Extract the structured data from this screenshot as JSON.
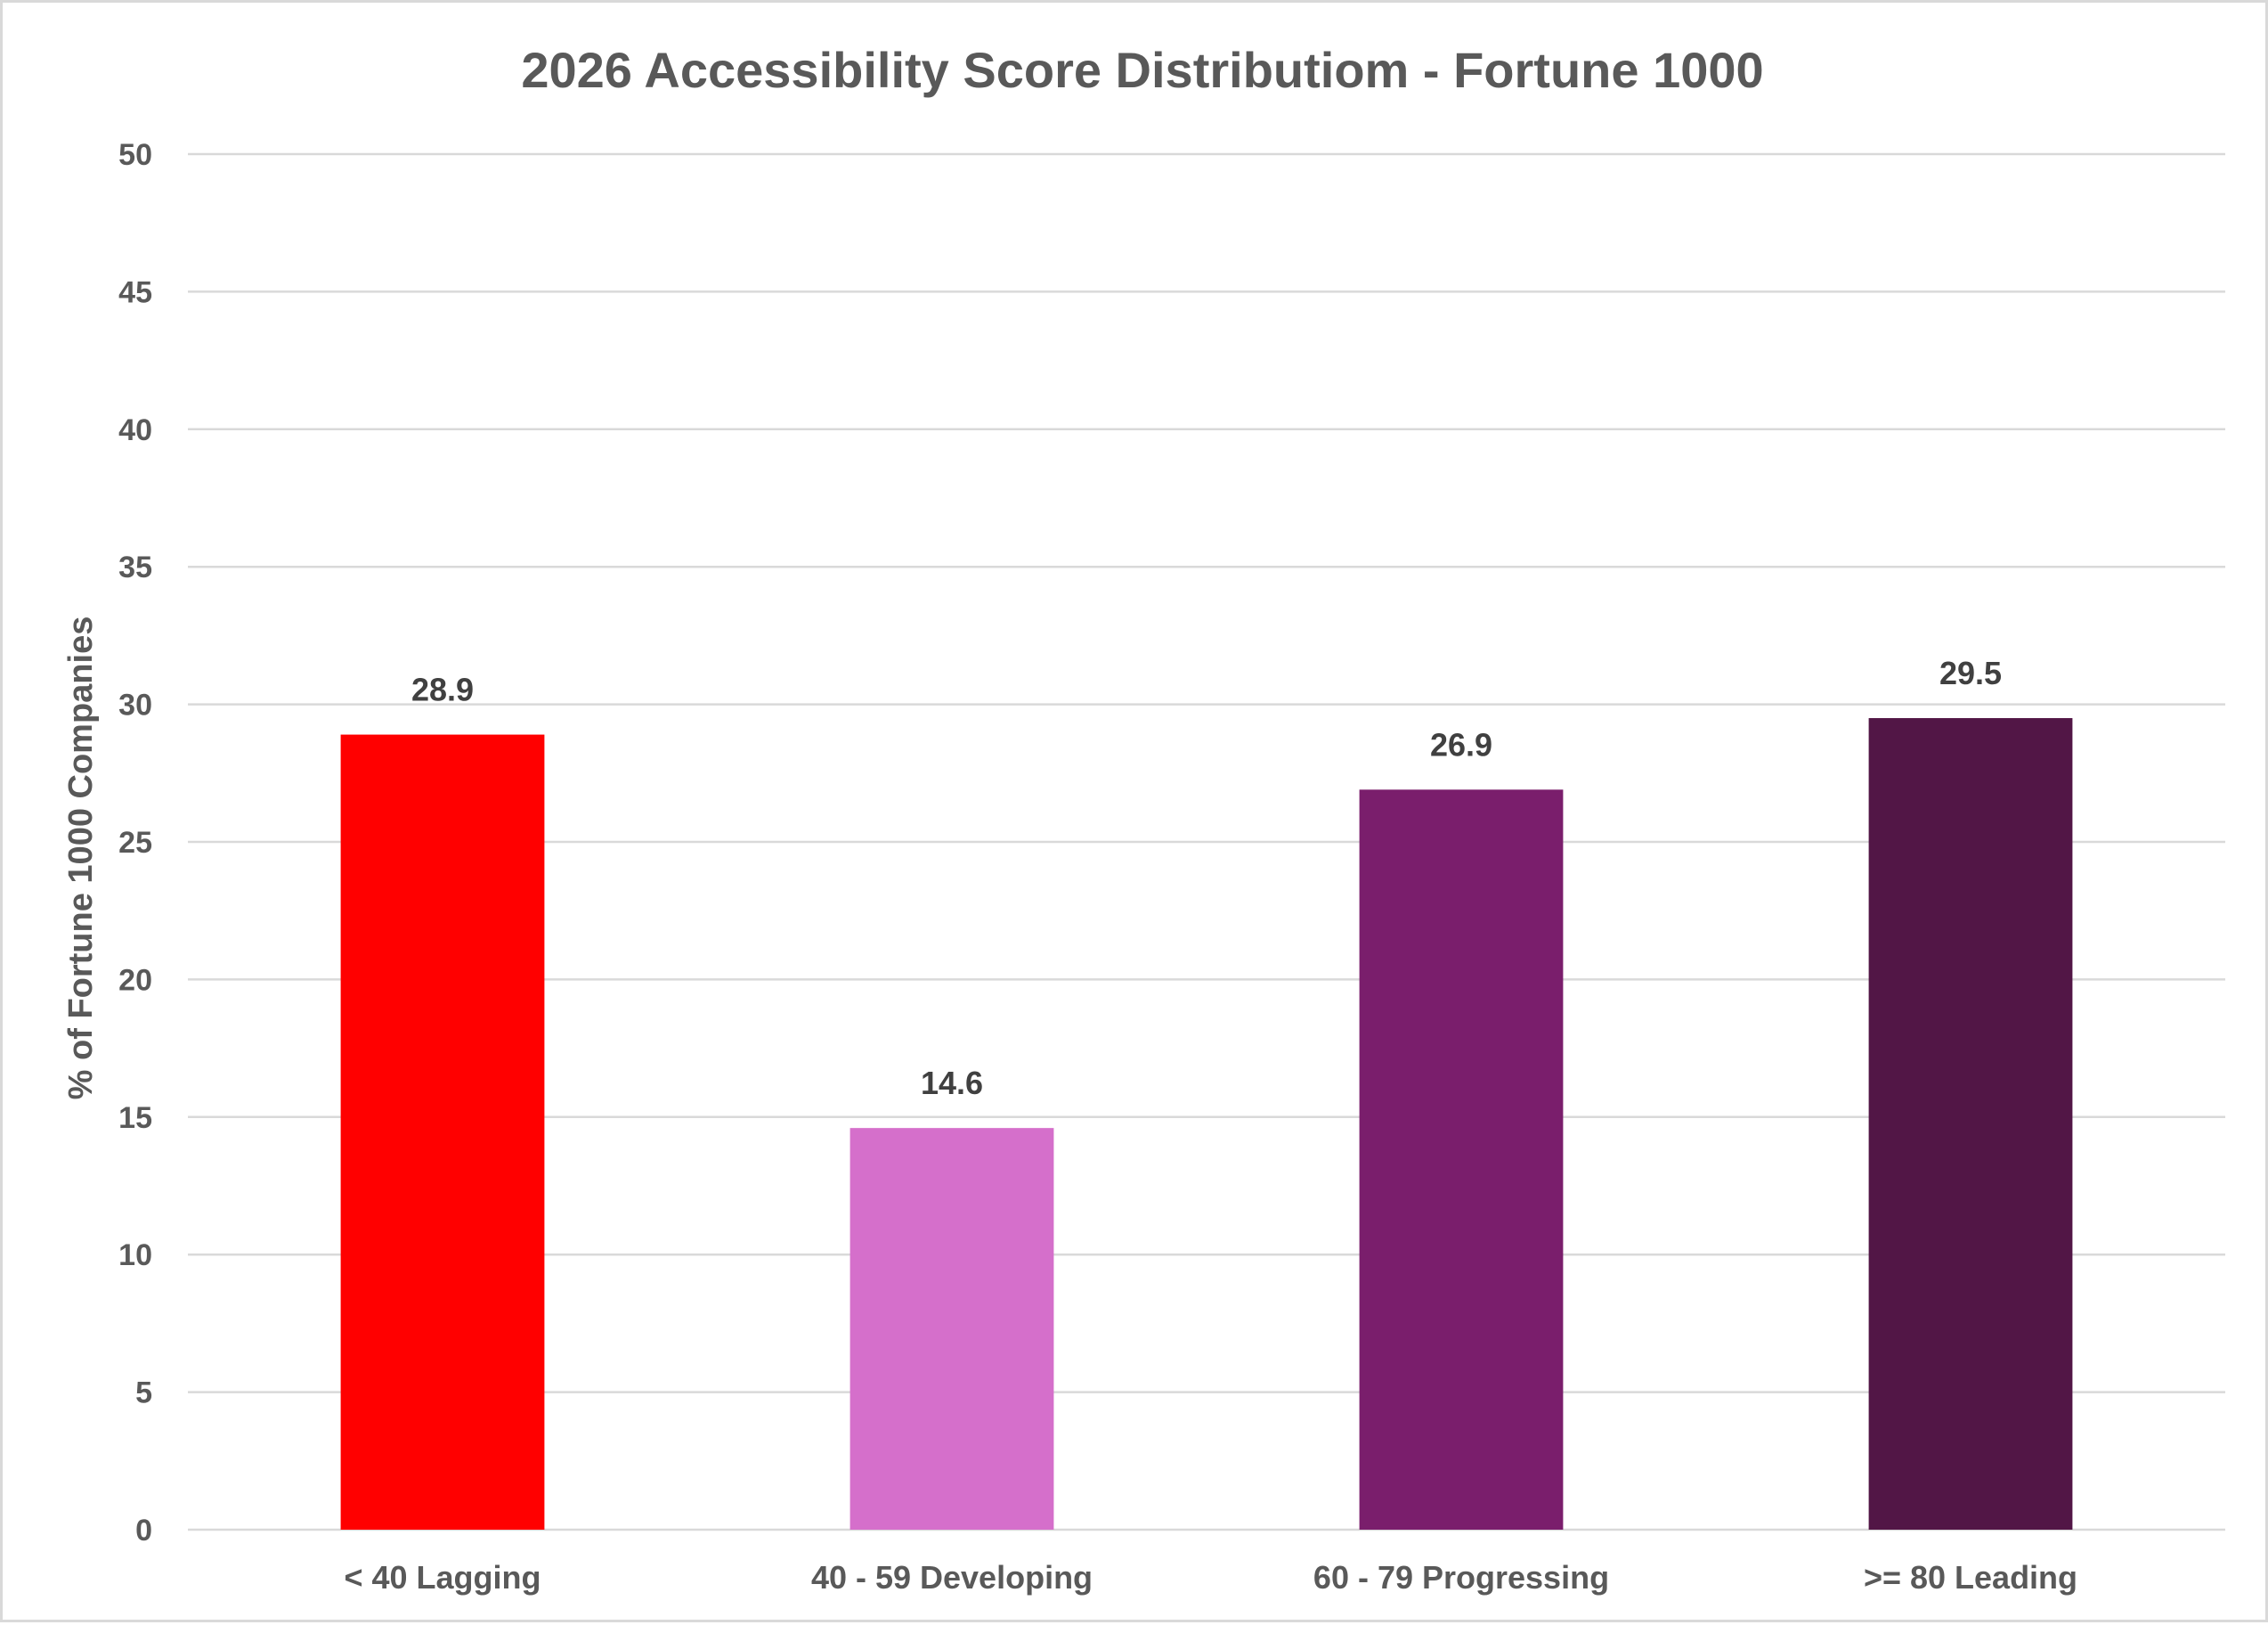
{
  "chart_data": {
    "type": "bar",
    "title": "2026 Accessibility Score Distributiom - Fortune 1000",
    "ylabel": "% of Fortune 1000 Companies",
    "xlabel": "",
    "categories": [
      "< 40 Lagging",
      "40 - 59 Developing",
      "60 - 79 Progressing",
      ">= 80 Leading"
    ],
    "values": [
      28.9,
      14.6,
      26.9,
      29.5
    ],
    "data_labels": [
      "28.9",
      "14.6",
      "26.9",
      "29.5"
    ],
    "colors": [
      "#ff0000",
      "#d56fcb",
      "#7a1e6c",
      "#521646"
    ],
    "ylim": [
      0,
      50
    ],
    "yticks": [
      0,
      5,
      10,
      15,
      20,
      25,
      30,
      35,
      40,
      45,
      50
    ],
    "grid": true,
    "legend": "none"
  }
}
